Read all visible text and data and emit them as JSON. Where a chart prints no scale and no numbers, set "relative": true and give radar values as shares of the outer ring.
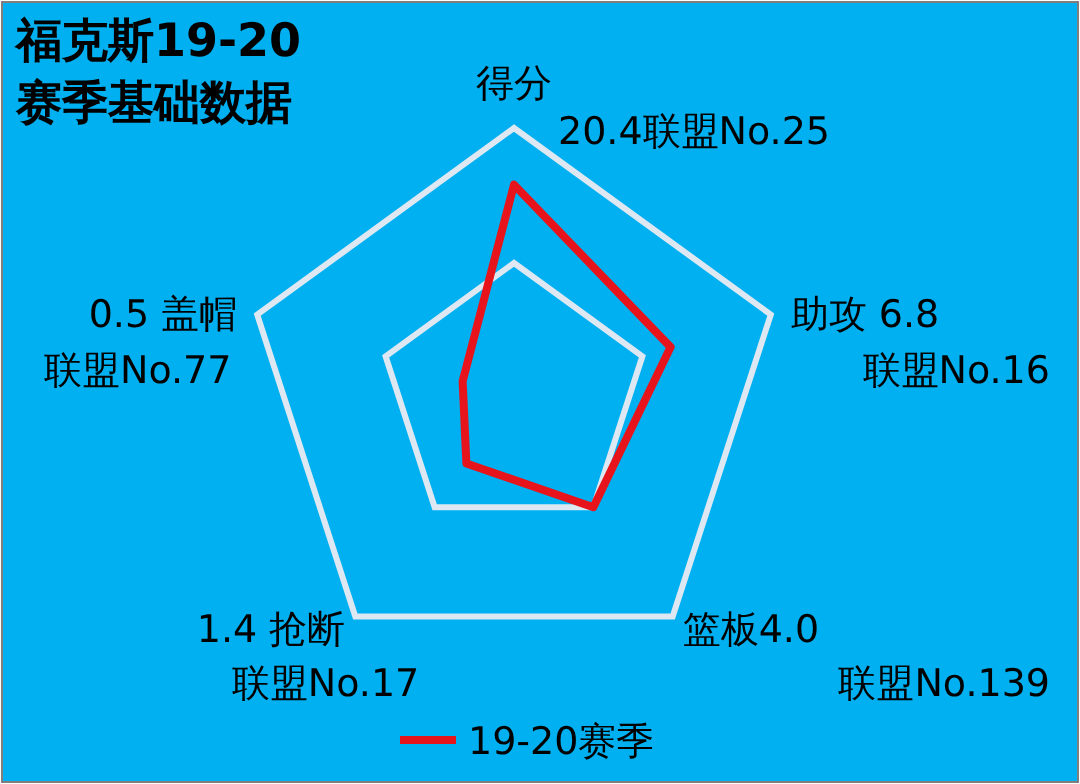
{
  "chart_data": {
    "type": "radar",
    "title": "福克斯19-20\n赛季基础数据",
    "relative": true,
    "categories": [
      "得分",
      "助攻 6.8",
      "篮板4.0",
      "1.4 抢断",
      "0.5 盖帽"
    ],
    "annotations": [
      "20.4联盟No.25",
      "联盟No.16",
      "联盟No.139",
      "联盟No.17",
      "联盟No.77"
    ],
    "series": [
      {
        "name": "19-20赛季",
        "color": "#e8141c",
        "values": [
          0.79,
          0.61,
          0.5,
          0.3,
          0.2
        ]
      }
    ],
    "grid": true,
    "legend": "bottom"
  }
}
